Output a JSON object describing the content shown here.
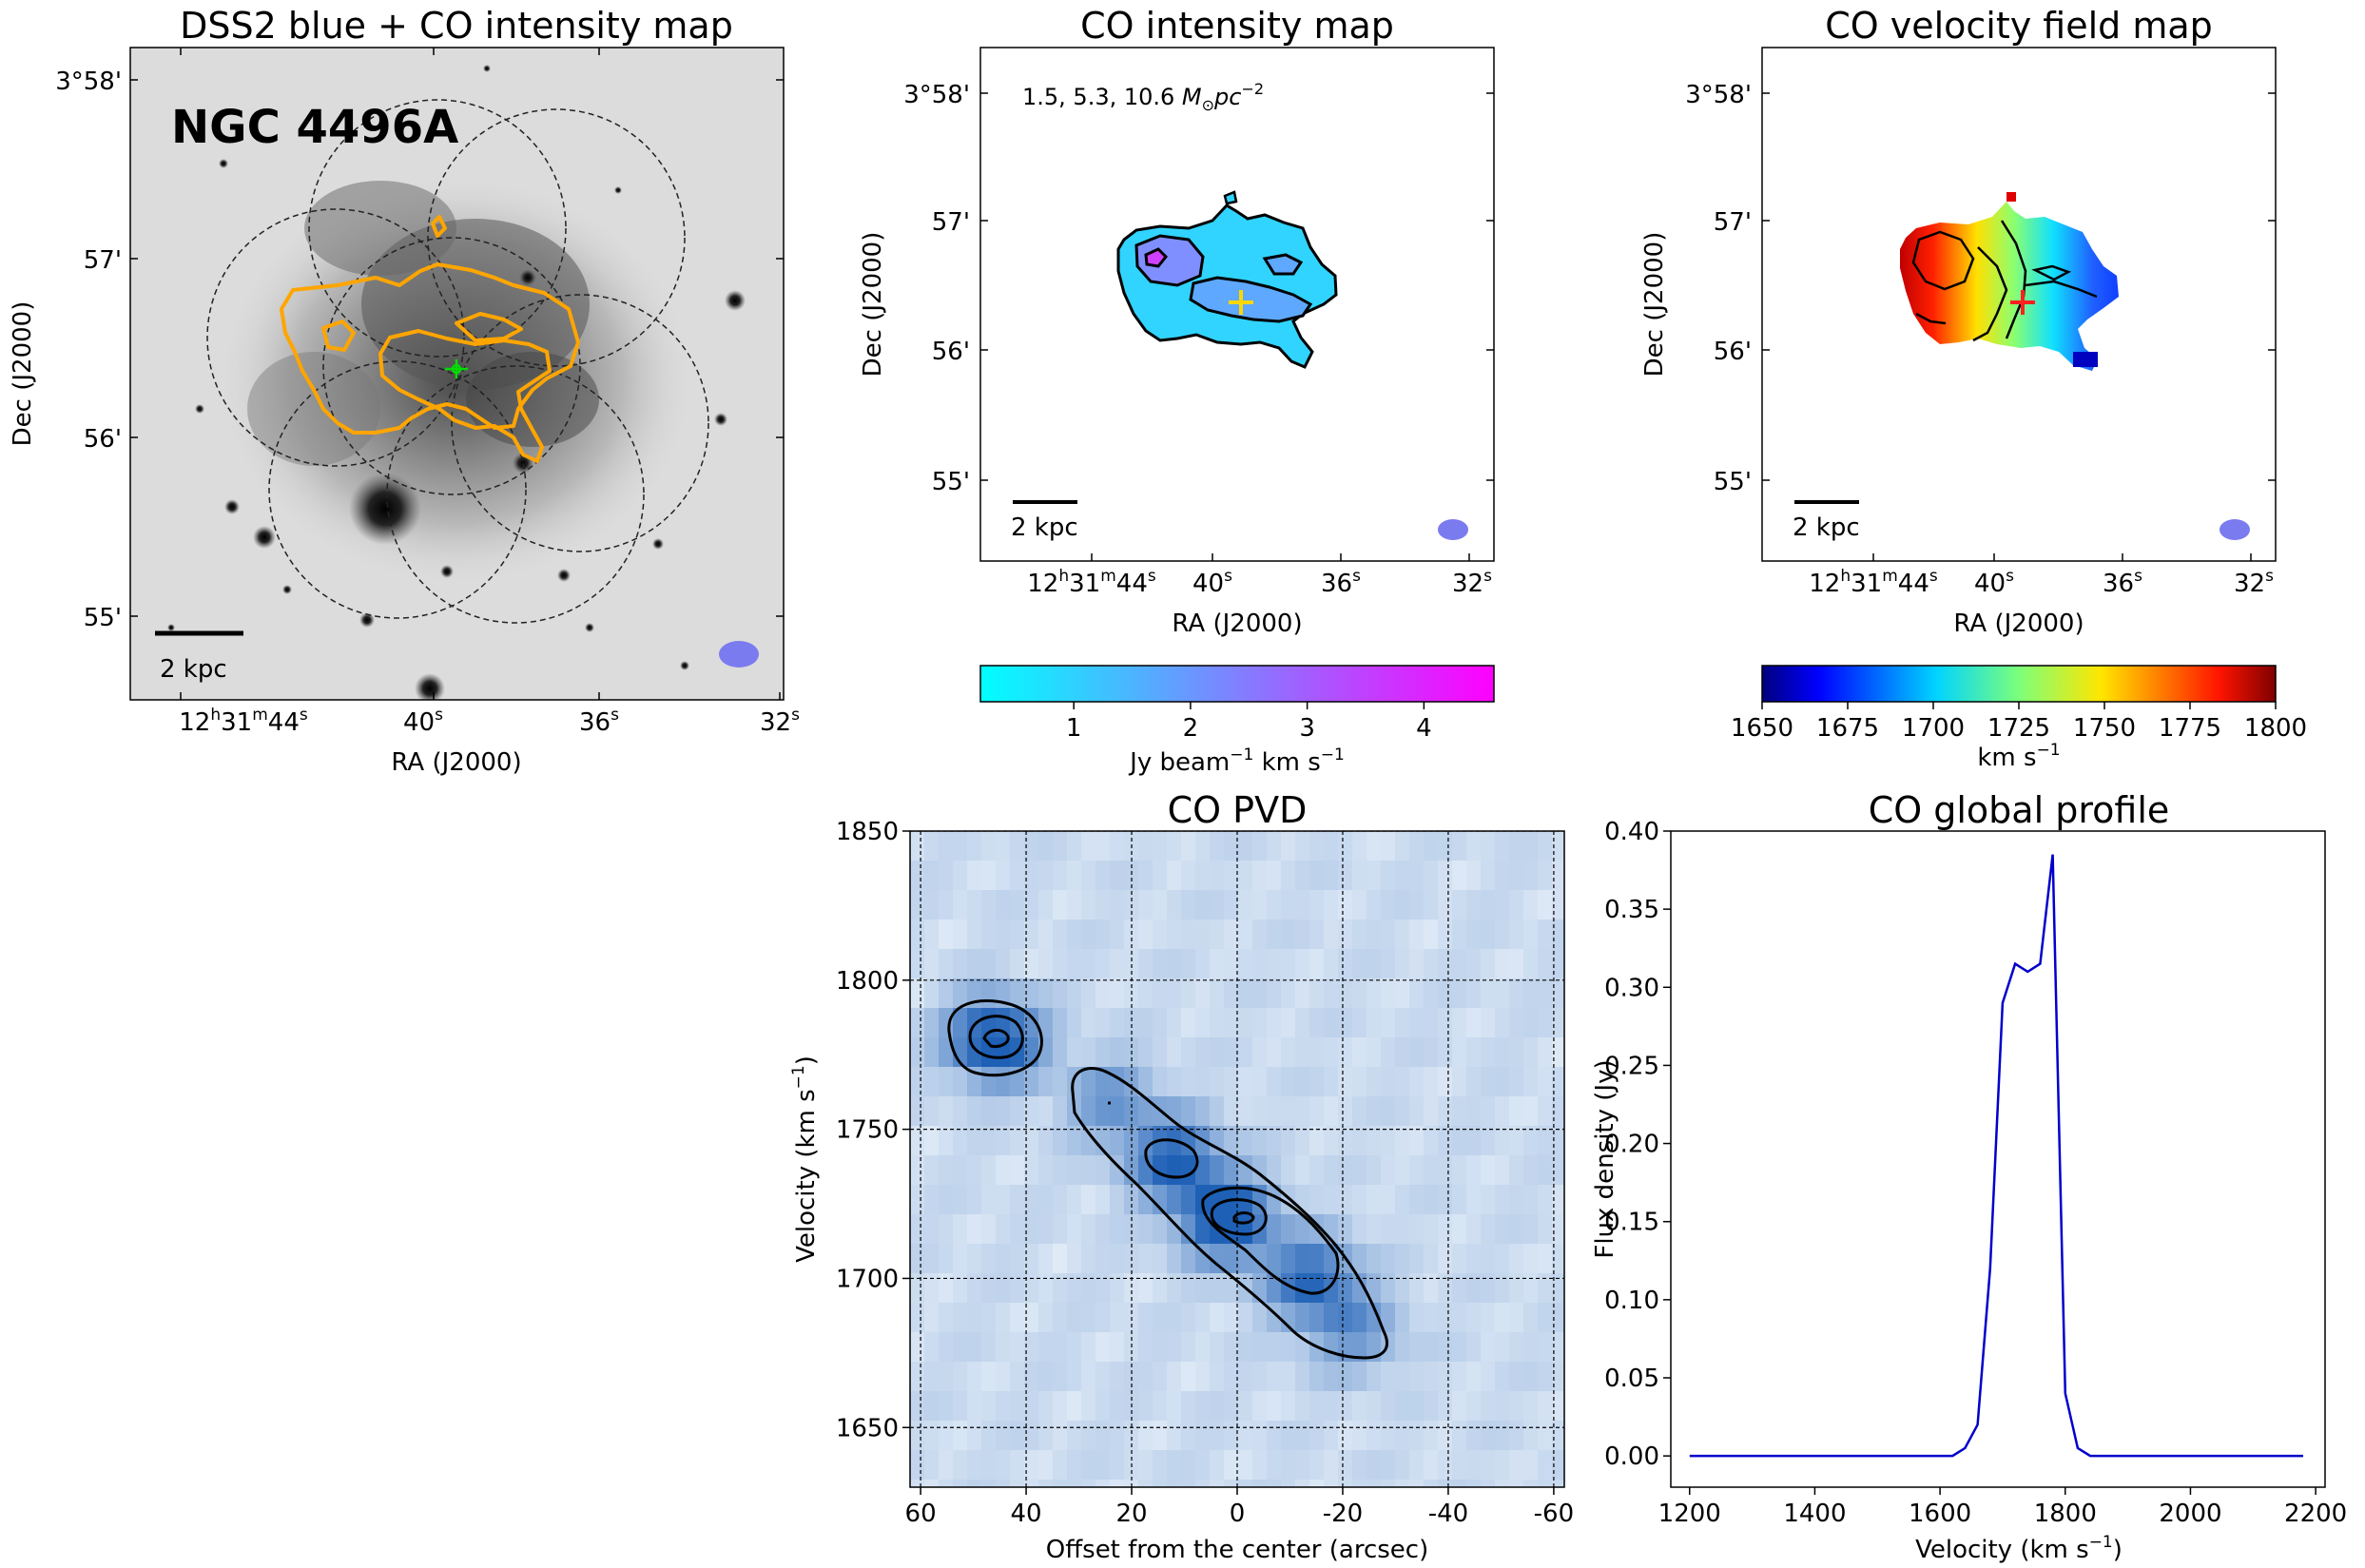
{
  "chart_data": [
    {
      "type": "image",
      "title": "DSS2 blue + CO intensity map",
      "label": "NGC 4496A",
      "xlabel": "RA (J2000)",
      "ylabel": "Dec (J2000)",
      "xticks": [
        {
          "h": "12",
          "hs": "h",
          "m": "31",
          "ms": "m",
          "s": "44",
          "ss": "s"
        },
        {
          "s": "40",
          "ss": "s"
        },
        {
          "s": "36",
          "ss": "s"
        },
        {
          "s": "32",
          "ss": "s"
        }
      ],
      "yticks": [
        "3°58'",
        "57'",
        "56'",
        "56'",
        "55'"
      ],
      "scalebar": "2 kpc",
      "colors": {
        "contour": "#ffa500",
        "center": "#00dd00",
        "beam": "#7b7bf0"
      }
    },
    {
      "type": "image",
      "title": "CO intensity map",
      "annotation": {
        "values": "1.5, 5.3, 10.6 ",
        "unit": "M",
        "sub": "⊙",
        "pc": "pc",
        "sup": "−2"
      },
      "xlabel": "RA (J2000)",
      "ylabel": "Dec (J2000)",
      "xticks": [
        {
          "h": "12",
          "hs": "h",
          "m": "31",
          "ms": "m",
          "s": "44",
          "ss": "s"
        },
        {
          "s": "40",
          "ss": "s"
        },
        {
          "s": "36",
          "ss": "s"
        },
        {
          "s": "32",
          "ss": "s"
        }
      ],
      "yticks": [
        "3°58'",
        "57'",
        "56'",
        "55'"
      ],
      "scalebar": "2 kpc",
      "colorbar": {
        "ticks": [
          1,
          2,
          3,
          4
        ],
        "range": [
          0.2,
          4.6
        ],
        "label": "Jy beam",
        "labelsup": "−1",
        "labelrest": " km s",
        "labelsup2": "−1"
      },
      "colors": {
        "center": "#ffd700",
        "beam": "#7b7bf0"
      }
    },
    {
      "type": "image",
      "title": "CO velocity field map",
      "xlabel": "RA (J2000)",
      "ylabel": "Dec (J2000)",
      "xticks": [
        {
          "h": "12",
          "hs": "h",
          "m": "31",
          "ms": "m",
          "s": "44",
          "ss": "s"
        },
        {
          "s": "40",
          "ss": "s"
        },
        {
          "s": "36",
          "ss": "s"
        },
        {
          "s": "32",
          "ss": "s"
        }
      ],
      "yticks": [
        "3°58'",
        "57'",
        "56'",
        "55'"
      ],
      "scalebar": "2 kpc",
      "colorbar": {
        "ticks": [
          1650,
          1675,
          1700,
          1725,
          1750,
          1775,
          1800
        ],
        "range": [
          1650,
          1800
        ],
        "label": "km s",
        "labelsup": "−1"
      },
      "colors": {
        "center": "#ff2020",
        "beam": "#7b7bf0"
      }
    },
    {
      "type": "heatmap",
      "title": "CO PVD",
      "xlabel": "Offset from the center (arcsec)",
      "ylabel": "Velocity (km s",
      "ylabelsup": "−1",
      "ylabelend": ")",
      "xlim": [
        62,
        -62
      ],
      "ylim": [
        1630,
        1850
      ],
      "xticks": [
        60,
        40,
        20,
        0,
        -20,
        -40,
        -60
      ],
      "yticks": [
        1650,
        1700,
        1750,
        1800,
        1850
      ],
      "emission_track": [
        {
          "x": 46,
          "v": 1780,
          "peak": 1.0
        },
        {
          "x": 24,
          "v": 1760,
          "peak": 0.45
        },
        {
          "x": 12,
          "v": 1740,
          "peak": 0.8
        },
        {
          "x": 2,
          "v": 1720,
          "peak": 1.0
        },
        {
          "x": -14,
          "v": 1700,
          "peak": 0.75
        },
        {
          "x": -22,
          "v": 1682,
          "peak": 0.45
        }
      ]
    },
    {
      "type": "line",
      "title": "CO global profile",
      "xlabel": "Velocity (km s",
      "xlabelsup": "−1",
      "xlabelend": ")",
      "ylabel": "Flux density (Jy)",
      "xlim": [
        1170,
        2215
      ],
      "ylim": [
        -0.02,
        0.4
      ],
      "xticks": [
        1200,
        1400,
        1600,
        1800,
        2000,
        2200
      ],
      "yticks": [
        "0.00",
        "0.05",
        "0.10",
        "0.15",
        "0.20",
        "0.25",
        "0.30",
        "0.35",
        "0.40"
      ],
      "color": "#0000cc",
      "x": [
        1200,
        1620,
        1640,
        1660,
        1680,
        1700,
        1720,
        1740,
        1760,
        1780,
        1800,
        1820,
        1840,
        2180
      ],
      "y": [
        0,
        0,
        0.005,
        0.02,
        0.12,
        0.29,
        0.315,
        0.31,
        0.315,
        0.385,
        0.04,
        0.005,
        0,
        0
      ]
    }
  ]
}
